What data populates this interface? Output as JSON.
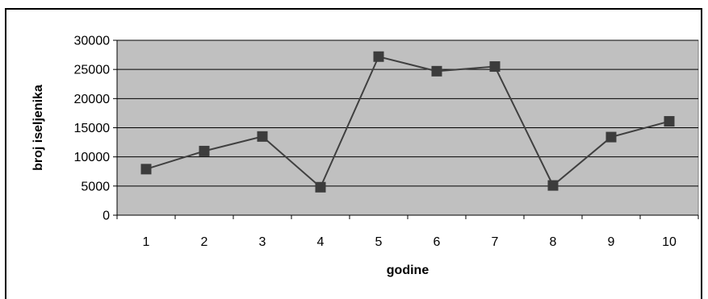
{
  "chart_data": {
    "type": "line",
    "xlabel": "godine",
    "ylabel": "broj iseljenika",
    "ylim": [
      0,
      30000
    ],
    "yticks": [
      0,
      5000,
      10000,
      15000,
      20000,
      25000,
      30000
    ],
    "categories": [
      "1",
      "2",
      "3",
      "4",
      "5",
      "6",
      "7",
      "8",
      "9",
      "10"
    ],
    "series": [
      {
        "values": [
          7900,
          11000,
          13500,
          4800,
          27200,
          24700,
          25500,
          5100,
          13400,
          16100
        ]
      }
    ],
    "grid": true,
    "legend": "none",
    "colors": {
      "plot_bg": "#c0c0c0",
      "line": "#404040",
      "marker": "#3c3c3c",
      "grid": "#000000"
    }
  }
}
